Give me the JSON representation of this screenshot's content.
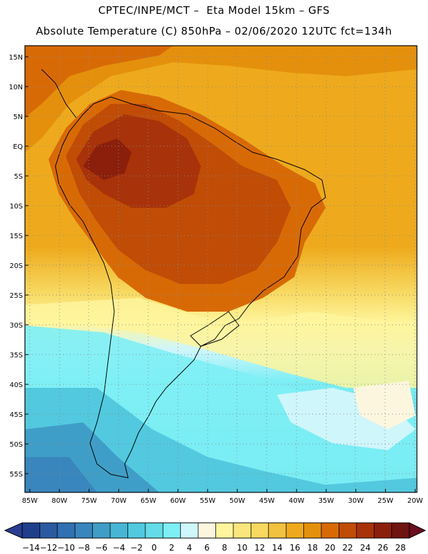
{
  "header": {
    "line1": "CPTEC/INPE/MCT –  Eta Model 15km – GFS",
    "line2": "Absolute Temperature (C) 850hPa – 02/06/2020 12UTC fct=134h"
  },
  "map": {
    "lat_labels": [
      "15N",
      "10N",
      "5N",
      "EQ",
      "5S",
      "10S",
      "15S",
      "20S",
      "25S",
      "30S",
      "35S",
      "40S",
      "45S",
      "50S",
      "55S"
    ],
    "lon_labels": [
      "85W",
      "80W",
      "75W",
      "70W",
      "65W",
      "60W",
      "55W",
      "50W",
      "45W",
      "40W",
      "35W",
      "30W",
      "25W",
      "20W"
    ]
  },
  "colorbar": {
    "labels": [
      "-14",
      "-12",
      "-10",
      "-8",
      "-6",
      "-4",
      "-2",
      "0",
      "2",
      "4",
      "6",
      "8",
      "10",
      "12",
      "14",
      "16",
      "18",
      "20",
      "22",
      "24",
      "26",
      "28"
    ],
    "colors": [
      "#1f3f8c",
      "#2b5aa0",
      "#3170b2",
      "#3886bd",
      "#3f9ec8",
      "#47b6d4",
      "#52c9df",
      "#63dbe8",
      "#7eeff5",
      "#cff6fb",
      "#fdf6df",
      "#fef59c",
      "#fbe67d",
      "#f7d860",
      "#f1c23e",
      "#eeaa1c",
      "#e5900c",
      "#d86a06",
      "#c04c06",
      "#a83209",
      "#8b1f0b",
      "#6f1410"
    ],
    "under_color": "#2a3d90",
    "over_color": "#6a0d1f"
  }
}
